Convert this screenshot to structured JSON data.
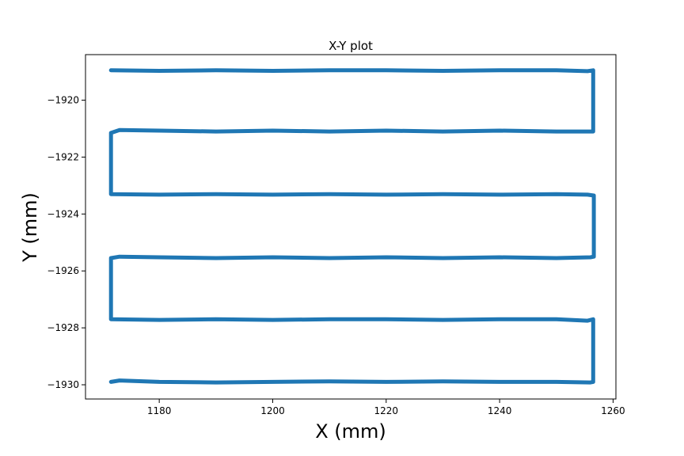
{
  "chart_data": {
    "type": "line",
    "title": "X-Y plot",
    "xlabel": "X (mm)",
    "ylabel": "Y (mm)",
    "xlim": [
      1167.0,
      1260.5
    ],
    "ylim": [
      -1930.5,
      -1918.4
    ],
    "xticks": [
      1180,
      1200,
      1220,
      1240,
      1260
    ],
    "yticks": [
      -1920,
      -1922,
      -1924,
      -1926,
      -1928,
      -1930
    ],
    "xtick_labels": [
      "1180",
      "1200",
      "1220",
      "1240",
      "1260"
    ],
    "ytick_labels": [
      "−1920",
      "−1922",
      "−1924",
      "−1926",
      "−1928",
      "−1930"
    ],
    "grid": false,
    "line_color": "#1f77b4",
    "series": [
      {
        "x": [
          1171.5,
          1173,
          1180,
          1190,
          1200,
          1210,
          1220,
          1230,
          1240,
          1250,
          1256,
          1256.5,
          1256.5,
          1255.5,
          1250,
          1240,
          1230,
          1220,
          1210,
          1200,
          1190,
          1180,
          1171.5,
          1171.5,
          1171.5,
          1173,
          1180,
          1190,
          1200,
          1210,
          1220,
          1230,
          1240,
          1250,
          1256,
          1256.6,
          1256.6,
          1255.5,
          1250,
          1240,
          1230,
          1220,
          1210,
          1200,
          1190,
          1180,
          1171.5,
          1171.5,
          1171.5,
          1173,
          1180,
          1190,
          1200,
          1210,
          1220,
          1230,
          1240,
          1250,
          1256,
          1256.5,
          1256.5,
          1255.5,
          1250,
          1240,
          1230,
          1220,
          1210,
          1200,
          1190,
          1180,
          1171.5
        ],
        "y": [
          -1929.9,
          -1929.85,
          -1929.9,
          -1929.92,
          -1929.9,
          -1929.88,
          -1929.9,
          -1929.88,
          -1929.9,
          -1929.9,
          -1929.92,
          -1929.9,
          -1927.7,
          -1927.75,
          -1927.7,
          -1927.7,
          -1927.72,
          -1927.7,
          -1927.7,
          -1927.72,
          -1927.7,
          -1927.72,
          -1927.7,
          -1927.7,
          -1925.55,
          -1925.5,
          -1925.52,
          -1925.55,
          -1925.52,
          -1925.55,
          -1925.52,
          -1925.55,
          -1925.52,
          -1925.55,
          -1925.52,
          -1925.5,
          -1923.35,
          -1923.32,
          -1923.3,
          -1923.32,
          -1923.3,
          -1923.32,
          -1923.3,
          -1923.32,
          -1923.3,
          -1923.32,
          -1923.3,
          -1923.3,
          -1921.15,
          -1921.05,
          -1921.07,
          -1921.1,
          -1921.07,
          -1921.1,
          -1921.07,
          -1921.1,
          -1921.07,
          -1921.1,
          -1921.1,
          -1921.1,
          -1918.95,
          -1918.98,
          -1918.95,
          -1918.95,
          -1918.97,
          -1918.95,
          -1918.95,
          -1918.97,
          -1918.95,
          -1918.97,
          -1918.95
        ]
      }
    ]
  }
}
